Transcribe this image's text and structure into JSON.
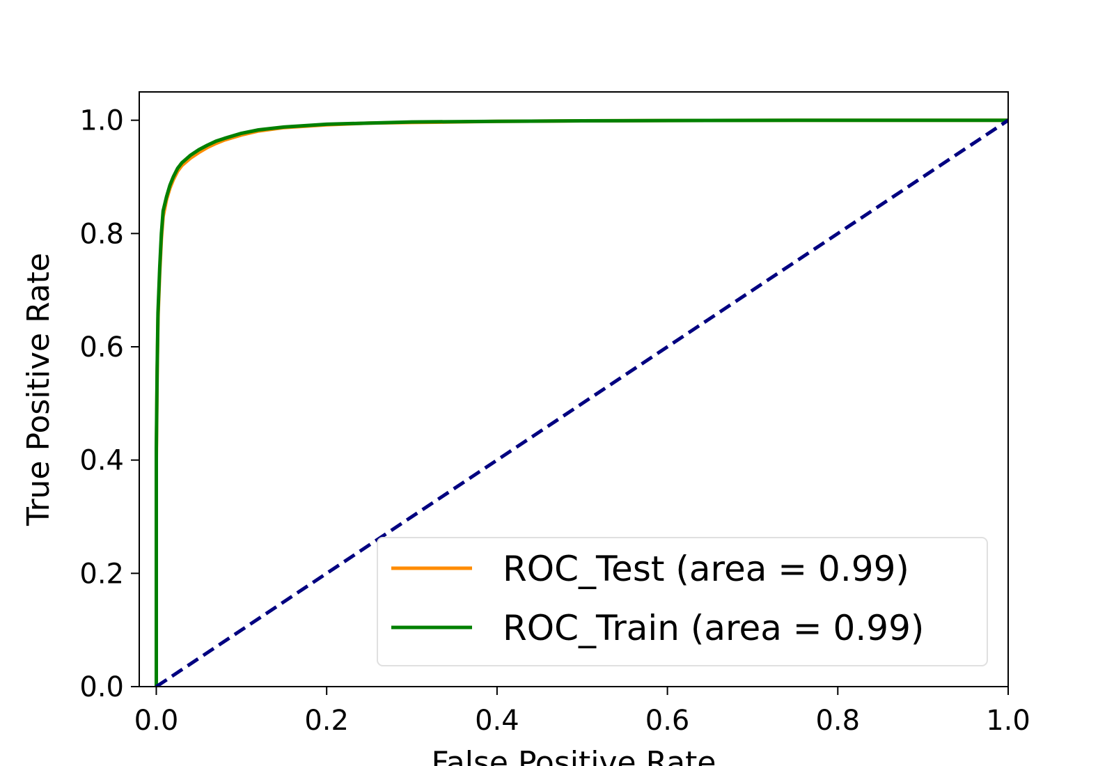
{
  "chart_data": {
    "type": "line",
    "title": "",
    "xlabel": "False Positive Rate",
    "ylabel": "True Positive Rate",
    "xlim": [
      -0.02,
      1.0
    ],
    "ylim": [
      0.0,
      1.05
    ],
    "x_ticks": [
      "0.0",
      "0.2",
      "0.4",
      "0.6",
      "0.8",
      "1.0"
    ],
    "x_tick_values": [
      0.0,
      0.2,
      0.4,
      0.6,
      0.8,
      1.0
    ],
    "y_ticks": [
      "0.0",
      "0.2",
      "0.4",
      "0.6",
      "0.8",
      "1.0"
    ],
    "y_tick_values": [
      0.0,
      0.2,
      0.4,
      0.6,
      0.8,
      1.0
    ],
    "grid": false,
    "legend_position": "lower-right",
    "series": [
      {
        "name": "ROC_Test (area = 0.99)",
        "color": "#ff8c00",
        "style": "solid",
        "x": [
          0.0,
          0.0,
          0.001,
          0.002,
          0.004,
          0.006,
          0.008,
          0.012,
          0.016,
          0.02,
          0.025,
          0.03,
          0.04,
          0.05,
          0.06,
          0.07,
          0.08,
          0.1,
          0.12,
          0.15,
          0.2,
          0.25,
          0.3,
          0.4,
          0.5,
          0.6,
          0.8,
          1.0
        ],
        "y": [
          0.0,
          0.4,
          0.55,
          0.65,
          0.73,
          0.79,
          0.83,
          0.86,
          0.88,
          0.895,
          0.91,
          0.92,
          0.933,
          0.943,
          0.952,
          0.959,
          0.965,
          0.974,
          0.981,
          0.987,
          0.992,
          0.995,
          0.996,
          0.998,
          0.999,
          0.9995,
          1.0,
          1.0
        ]
      },
      {
        "name": "ROC_Train (area = 0.99)",
        "color": "#008000",
        "style": "solid",
        "x": [
          0.0,
          0.0,
          0.001,
          0.002,
          0.004,
          0.006,
          0.008,
          0.012,
          0.016,
          0.02,
          0.025,
          0.03,
          0.04,
          0.05,
          0.06,
          0.07,
          0.08,
          0.1,
          0.12,
          0.15,
          0.2,
          0.25,
          0.3,
          0.4,
          0.5,
          0.6,
          0.8,
          1.0
        ],
        "y": [
          0.0,
          0.42,
          0.56,
          0.66,
          0.74,
          0.8,
          0.84,
          0.865,
          0.885,
          0.9,
          0.915,
          0.925,
          0.938,
          0.948,
          0.956,
          0.963,
          0.968,
          0.977,
          0.983,
          0.988,
          0.993,
          0.995,
          0.997,
          0.998,
          0.999,
          0.9995,
          1.0,
          1.0
        ]
      },
      {
        "name": "chance",
        "color": "#000080",
        "style": "dashed",
        "x": [
          0.0,
          1.0
        ],
        "y": [
          0.0,
          1.0
        ]
      }
    ],
    "legend": [
      {
        "label": "ROC_Test (area = 0.99)",
        "color": "#ff8c00"
      },
      {
        "label": "ROC_Train (area = 0.99)",
        "color": "#008000"
      }
    ]
  }
}
